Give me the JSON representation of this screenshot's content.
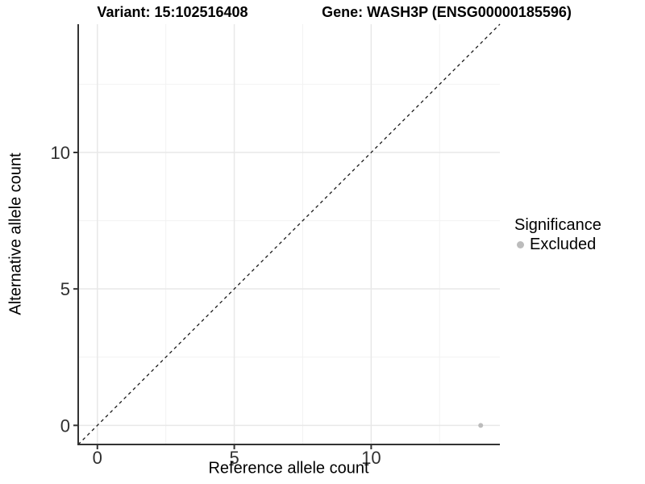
{
  "header": {
    "variant_title": "Variant: 15:102516408",
    "gene_title": "Gene: WASH3P (ENSG00000185596)"
  },
  "axes": {
    "x": {
      "label": "Reference allele count"
    },
    "y": {
      "label": "Alternative allele count"
    }
  },
  "legend": {
    "title": "Significance",
    "items": [
      {
        "label": "Excluded",
        "symbol": "circle",
        "color": "#bcbcbc"
      }
    ]
  },
  "chart_data": {
    "type": "scatter",
    "title": "Variant: 15:102516408   Gene: WASH3P (ENSG00000185596)",
    "xlabel": "Reference allele count",
    "ylabel": "Alternative allele count",
    "xlim": [
      -0.7,
      14.7
    ],
    "ylim": [
      -0.7,
      14.7
    ],
    "x_ticks": [
      0,
      5,
      10
    ],
    "y_ticks": [
      0,
      5,
      10
    ],
    "x_minor_ticks": [
      2.5,
      7.5,
      12.5
    ],
    "y_minor_ticks": [
      2.5,
      7.5,
      12.5
    ],
    "grid": "major+minor",
    "legend_position": "right",
    "series": [
      {
        "name": "Excluded",
        "color": "#bcbcbc",
        "points": [
          [
            14,
            0
          ]
        ]
      }
    ],
    "reference_line": {
      "kind": "identity",
      "slope": 1,
      "intercept": 0,
      "style": "dashed",
      "color": "#1a1a1a"
    }
  },
  "colors": {
    "background": "#ffffff",
    "axis_line": "#333333",
    "tick_label": "#303030",
    "grid_major": "#e8e8e8",
    "grid_minor": "#f2f2f2",
    "title_text": "#000000"
  }
}
